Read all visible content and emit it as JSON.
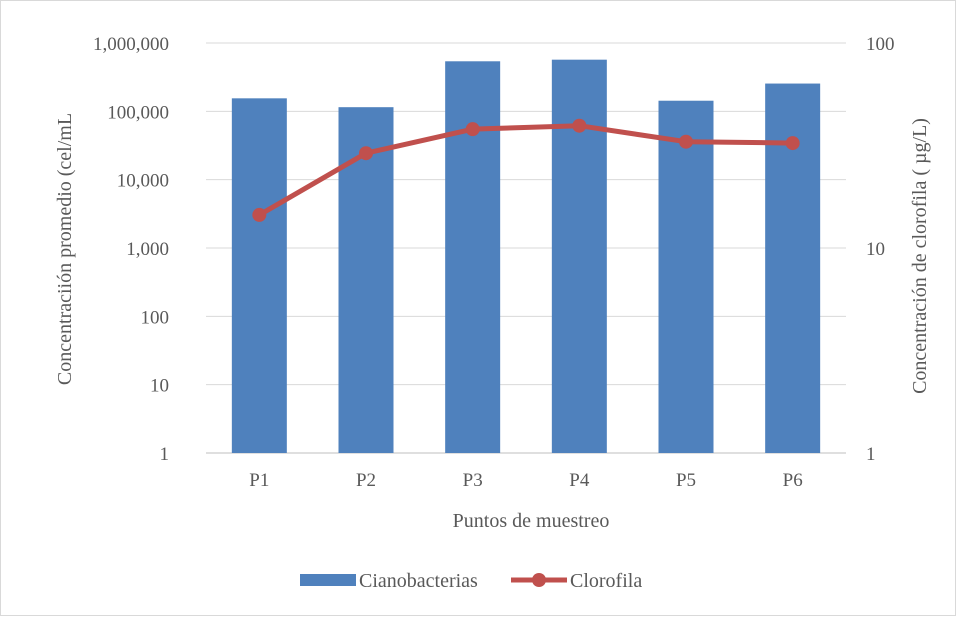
{
  "chart_data": {
    "type": "bar",
    "title": "",
    "categories": [
      "P1",
      "P2",
      "P3",
      "P4",
      "P5",
      "P6"
    ],
    "xlabel": "Puntos de muestreo",
    "series": [
      {
        "name": "Cianobacterias",
        "type": "bar",
        "axis": "left",
        "color": "#4f81bd",
        "values": [
          155000,
          115000,
          540000,
          570000,
          143000,
          255000
        ]
      },
      {
        "name": "Clorofila",
        "type": "line",
        "axis": "right",
        "color": "#c0504d",
        "values": [
          14.5,
          29,
          38,
          39.5,
          33,
          32.5
        ]
      }
    ],
    "y_left": {
      "label": "Concentraciión promedio (cel/mL",
      "scale": "log",
      "ylim": [
        1,
        1000000
      ],
      "ticks": [
        1,
        10,
        100,
        1000,
        10000,
        100000,
        1000000
      ],
      "tick_labels": [
        "1",
        "10",
        "100",
        "1,000",
        "10,000",
        "100,000",
        "1,000,000"
      ]
    },
    "y_right": {
      "label": "Concentración de clorofila ( µg/L)",
      "scale": "log",
      "ylim": [
        1,
        100
      ],
      "ticks": [
        1,
        10,
        100
      ],
      "tick_labels": [
        "1",
        "10",
        "100"
      ]
    },
    "grid": true,
    "legend_position": "bottom"
  }
}
